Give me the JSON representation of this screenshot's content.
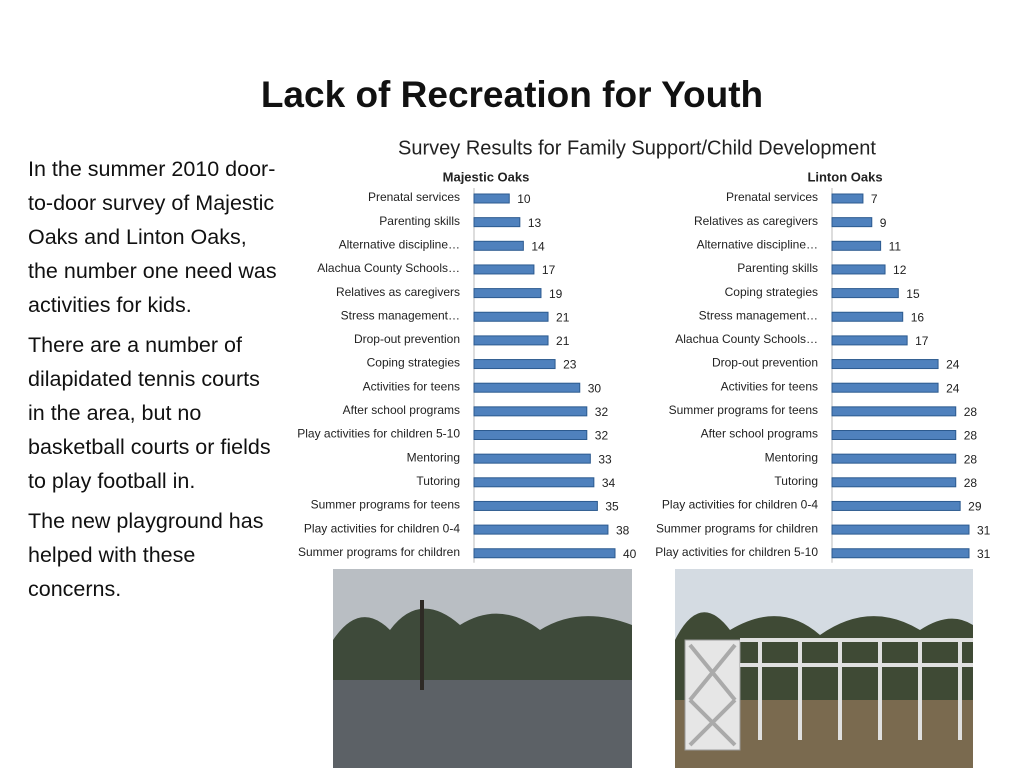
{
  "title": "Lack of Recreation for Youth",
  "paragraphs": [
    "In the summer 2010 door-to-door survey of Majestic Oaks and Linton Oaks, the number one need was activities for kids.",
    "There are a number of dilapidated tennis courts in the area, but no basketball courts or fields to play football in.",
    "The new playground has helped with these concerns."
  ],
  "charts_title": "Survey Results for Family Support/Child Development",
  "chart_data": [
    {
      "type": "bar",
      "orientation": "horizontal",
      "title": "Majestic Oaks",
      "color": "#4f81bd",
      "xlim": [
        0,
        40
      ],
      "categories": [
        "Prenatal services",
        "Parenting skills",
        "Alternative discipline…",
        "Alachua County Schools…",
        "Relatives as caregivers",
        "Stress management…",
        "Drop-out prevention",
        "Coping strategies",
        "Activities for teens",
        "After school programs",
        "Play activities for children 5-10",
        "Mentoring",
        "Tutoring",
        "Summer programs for teens",
        "Play activities for children 0-4",
        "Summer programs for children"
      ],
      "values": [
        10,
        13,
        14,
        17,
        19,
        21,
        21,
        23,
        30,
        32,
        32,
        33,
        34,
        35,
        38,
        40
      ]
    },
    {
      "type": "bar",
      "orientation": "horizontal",
      "title": "Linton Oaks",
      "color": "#4f81bd",
      "xlim": [
        0,
        31
      ],
      "categories": [
        "Prenatal services",
        "Relatives as caregivers",
        "Alternative discipline…",
        "Parenting skills",
        "Coping strategies",
        "Stress management…",
        "Alachua County Schools…",
        "Drop-out prevention",
        "Activities for teens",
        "Summer programs for teens",
        "After school programs",
        "Mentoring",
        "Tutoring",
        "Play activities for children 0-4",
        "Summer programs for children",
        "Play activities for children 5-10"
      ],
      "values": [
        7,
        9,
        11,
        12,
        15,
        16,
        17,
        24,
        24,
        28,
        28,
        28,
        28,
        29,
        31,
        31
      ]
    }
  ]
}
